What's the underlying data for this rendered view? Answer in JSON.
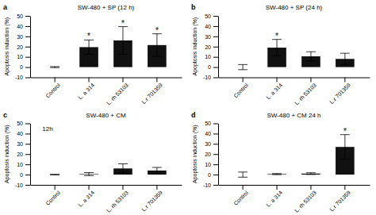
{
  "chart_data": [
    {
      "type": "bar",
      "panel_label": "a",
      "title": "SW-480 + SP (12 h)",
      "categories": [
        "Control",
        "L. a 314",
        "L. rh 53103",
        "L.r 701359"
      ],
      "values": [
        0,
        19.5,
        26.0,
        21.5
      ],
      "errors": [
        0.5,
        7.0,
        13.5,
        11.0
      ],
      "annotations": [
        null,
        "*",
        "*",
        "*"
      ],
      "color": "#111111",
      "ylabel": "Apoptosis induction (%)",
      "ylim": [
        -10,
        50
      ],
      "yticks": [
        -10,
        0,
        10,
        20,
        30,
        40,
        50
      ]
    },
    {
      "type": "bar",
      "panel_label": "b",
      "title": "SW-480 + SP (24 h)",
      "categories": [
        "Control",
        "L. a 314",
        "L. rh 53103",
        "L.r 701359"
      ],
      "values": [
        0,
        19.0,
        10.5,
        8.0
      ],
      "errors": [
        2.5,
        8.0,
        4.5,
        5.5
      ],
      "annotations": [
        null,
        "*",
        null,
        null
      ],
      "color": "#111111",
      "ylabel": "Apoptosis induction (%)",
      "ylim": [
        -10,
        50
      ],
      "yticks": [
        -10,
        0,
        10,
        20,
        30,
        40,
        50
      ]
    },
    {
      "type": "bar",
      "panel_label": "c",
      "title": "SW-480 + CM",
      "subtitle": "12h",
      "categories": [
        "Control",
        "L. a 314",
        "L. rh 53103",
        "L.r 701359"
      ],
      "values": [
        0,
        0.5,
        6.0,
        4.0
      ],
      "errors": [
        0.3,
        1.5,
        4.5,
        3.0
      ],
      "annotations": [
        null,
        null,
        null,
        null
      ],
      "color": "#111111",
      "ylabel": "Apoptosis induction (%)",
      "ylim": [
        -10,
        50
      ],
      "yticks": [
        -10,
        0,
        10,
        20,
        30,
        40,
        50
      ]
    },
    {
      "type": "bar",
      "panel_label": "d",
      "title": "SW-480 + CM  24 h",
      "categories": [
        "Control",
        "L. a 314",
        "L. rh 53103",
        "L.r 701359"
      ],
      "values": [
        0,
        0.5,
        1.0,
        27.0
      ],
      "errors": [
        2.5,
        0.5,
        0.8,
        12.0
      ],
      "annotations": [
        null,
        null,
        null,
        "*"
      ],
      "color": "#111111",
      "ylabel": "Apoptosis induction (%)",
      "ylim": [
        -10,
        50
      ],
      "yticks": [
        -10,
        0,
        10,
        20,
        30,
        40,
        50
      ]
    }
  ]
}
